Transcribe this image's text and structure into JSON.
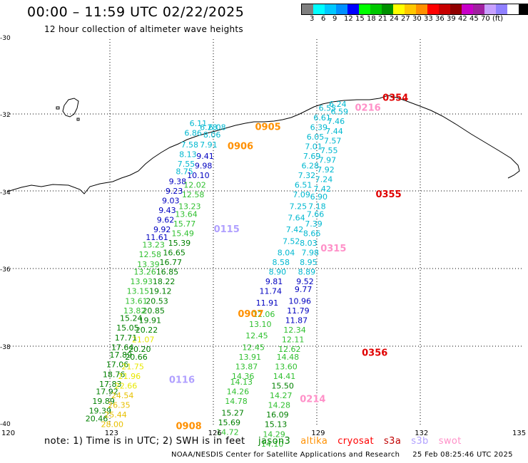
{
  "header": {
    "title": "00:00 – 11:59 UTC 02/22/2025",
    "subtitle": "12 hour collection of altimeter wave heights"
  },
  "colorbar": {
    "colors": [
      "#7f7f7f",
      "#00ffff",
      "#00c8ff",
      "#0090ff",
      "#0000ff",
      "#00ff00",
      "#00c800",
      "#009000",
      "#ffff00",
      "#ffc800",
      "#ff9000",
      "#ff0000",
      "#c80000",
      "#900000",
      "#c800c8",
      "#a020a0",
      "#c8a0ff",
      "#9080ff",
      "#ffffff",
      "#000000"
    ],
    "labels": [
      "3",
      "6",
      "9",
      "12",
      "15",
      "18",
      "21",
      "24",
      "27",
      "30",
      "33",
      "36",
      "39",
      "42",
      "45",
      "70",
      "(ft)"
    ]
  },
  "axes": {
    "lat_labels": [
      "-30",
      "-32",
      "-34",
      "-36",
      "-38",
      "-40"
    ],
    "lon_labels": [
      "120",
      "123",
      "126",
      "129",
      "132",
      "135"
    ]
  },
  "note": {
    "text": "note: 1) Time is in UTC; 2) SWH is in feet",
    "satellites": [
      {
        "name": "jason3",
        "color": "#008000"
      },
      {
        "name": "altika",
        "color": "#ff9000"
      },
      {
        "name": "cryosat",
        "color": "#ff0000"
      },
      {
        "name": "s3a",
        "color": "#c00000"
      },
      {
        "name": "s3b",
        "color": "#b0a0ff"
      },
      {
        "name": "swot",
        "color": "#ff90c8"
      }
    ]
  },
  "credit": {
    "text": "NOAA/NESDIS Center for Satellite Applications and Research",
    "stamp": "25 Feb 08:25:46 UTC 2025"
  },
  "pass_labels": [
    {
      "text": "0354",
      "color": "#e00000",
      "lon": 130.9,
      "lat": -31.6
    },
    {
      "text": "0216",
      "color": "#ff90c8",
      "lon": 130.1,
      "lat": -31.85
    },
    {
      "text": "0905",
      "color": "#ff9000",
      "lon": 127.2,
      "lat": -32.35
    },
    {
      "text": "0906",
      "color": "#ff9000",
      "lon": 126.4,
      "lat": -32.85
    },
    {
      "text": "0355",
      "color": "#e00000",
      "lon": 130.7,
      "lat": -34.1
    },
    {
      "text": "0115",
      "color": "#b0a0ff",
      "lon": 126.0,
      "lat": -35.0
    },
    {
      "text": "0315",
      "color": "#ff90c8",
      "lon": 129.1,
      "lat": -35.5
    },
    {
      "text": "0907",
      "color": "#ff9000",
      "lon": 126.7,
      "lat": -37.2
    },
    {
      "text": "0356",
      "color": "#e00000",
      "lon": 130.3,
      "lat": -38.2
    },
    {
      "text": "0116",
      "color": "#b0a0ff",
      "lon": 124.7,
      "lat": -38.9
    },
    {
      "text": "0214",
      "color": "#ff90c8",
      "lon": 128.5,
      "lat": -39.4
    },
    {
      "text": "0908",
      "color": "#ff9000",
      "lon": 124.9,
      "lat": -40.1
    }
  ],
  "swh_values": [
    {
      "v": "6.11",
      "c": "#00b8d0",
      "lon": 125.55,
      "lat": -32.25
    },
    {
      "v": "6.08",
      "c": "#00b8d0",
      "lon": 126.1,
      "lat": -32.35
    },
    {
      "v": "6.28",
      "c": "#00b8d0",
      "lon": 125.85,
      "lat": -32.35
    },
    {
      "v": "6.86",
      "c": "#00b8d0",
      "lon": 125.4,
      "lat": -32.5
    },
    {
      "v": "8.06",
      "c": "#00b8d0",
      "lon": 125.95,
      "lat": -32.55
    },
    {
      "v": "7.58",
      "c": "#00b8d0",
      "lon": 125.3,
      "lat": -32.8
    },
    {
      "v": "7.91",
      "c": "#00b8d0",
      "lon": 125.85,
      "lat": -32.8
    },
    {
      "v": "8.13",
      "c": "#00b8d0",
      "lon": 125.25,
      "lat": -33.05
    },
    {
      "v": "9.41",
      "c": "#0000c0",
      "lon": 125.75,
      "lat": -33.1
    },
    {
      "v": "7.55",
      "c": "#00b8d0",
      "lon": 125.2,
      "lat": -33.3
    },
    {
      "v": "9.98",
      "c": "#0000c0",
      "lon": 125.7,
      "lat": -33.35
    },
    {
      "v": "8.75",
      "c": "#00b8d0",
      "lon": 125.15,
      "lat": -33.5
    },
    {
      "v": "10.10",
      "c": "#0000c0",
      "lon": 125.55,
      "lat": -33.6
    },
    {
      "v": "9.38",
      "c": "#0000c0",
      "lon": 124.95,
      "lat": -33.75
    },
    {
      "v": "12.02",
      "c": "#30c030",
      "lon": 125.45,
      "lat": -33.85
    },
    {
      "v": "9.23",
      "c": "#0000c0",
      "lon": 124.85,
      "lat": -34.0
    },
    {
      "v": "12.58",
      "c": "#30c030",
      "lon": 125.4,
      "lat": -34.1
    },
    {
      "v": "9.03",
      "c": "#0000c0",
      "lon": 124.75,
      "lat": -34.25
    },
    {
      "v": "13.23",
      "c": "#30c030",
      "lon": 125.3,
      "lat": -34.4
    },
    {
      "v": "9.43",
      "c": "#0000c0",
      "lon": 124.65,
      "lat": -34.5
    },
    {
      "v": "13.64",
      "c": "#30c030",
      "lon": 125.2,
      "lat": -34.6
    },
    {
      "v": "9.62",
      "c": "#0000c0",
      "lon": 124.6,
      "lat": -34.75
    },
    {
      "v": "15.77",
      "c": "#30c030",
      "lon": 125.15,
      "lat": -34.85
    },
    {
      "v": "9.92",
      "c": "#0000c0",
      "lon": 124.5,
      "lat": -35.0
    },
    {
      "v": "15.49",
      "c": "#30c030",
      "lon": 125.1,
      "lat": -35.1
    },
    {
      "v": "11.61",
      "c": "#0000c0",
      "lon": 124.35,
      "lat": -35.2
    },
    {
      "v": "15.39",
      "c": "#008000",
      "lon": 125.0,
      "lat": -35.35
    },
    {
      "v": "13.23",
      "c": "#30c030",
      "lon": 124.25,
      "lat": -35.4
    },
    {
      "v": "16.65",
      "c": "#008000",
      "lon": 124.85,
      "lat": -35.6
    },
    {
      "v": "12.58",
      "c": "#30c030",
      "lon": 124.15,
      "lat": -35.65
    },
    {
      "v": "16.77",
      "c": "#008000",
      "lon": 124.75,
      "lat": -35.85
    },
    {
      "v": "13.39",
      "c": "#30c030",
      "lon": 124.1,
      "lat": -35.9
    },
    {
      "v": "16.85",
      "c": "#008000",
      "lon": 124.65,
      "lat": -36.1
    },
    {
      "v": "13.26",
      "c": "#30c030",
      "lon": 124.0,
      "lat": -36.1
    },
    {
      "v": "18.22",
      "c": "#008000",
      "lon": 124.55,
      "lat": -36.35
    },
    {
      "v": "13.93",
      "c": "#30c030",
      "lon": 123.9,
      "lat": -36.35
    },
    {
      "v": "19.12",
      "c": "#008000",
      "lon": 124.45,
      "lat": -36.6
    },
    {
      "v": "13.15",
      "c": "#30c030",
      "lon": 123.8,
      "lat": -36.6
    },
    {
      "v": "20.53",
      "c": "#008000",
      "lon": 124.35,
      "lat": -36.85
    },
    {
      "v": "13.61",
      "c": "#30c030",
      "lon": 123.75,
      "lat": -36.85
    },
    {
      "v": "20.85",
      "c": "#008000",
      "lon": 124.25,
      "lat": -37.1
    },
    {
      "v": "13.82",
      "c": "#30c030",
      "lon": 123.7,
      "lat": -37.1
    },
    {
      "v": "19.91",
      "c": "#008000",
      "lon": 124.15,
      "lat": -37.35
    },
    {
      "v": "15.24",
      "c": "#008000",
      "lon": 123.6,
      "lat": -37.3
    },
    {
      "v": "20.22",
      "c": "#008000",
      "lon": 124.05,
      "lat": -37.6
    },
    {
      "v": "15.05",
      "c": "#008000",
      "lon": 123.5,
      "lat": -37.55
    },
    {
      "v": "21.07",
      "c": "#e8e800",
      "lon": 123.95,
      "lat": -37.85
    },
    {
      "v": "17.71",
      "c": "#008000",
      "lon": 123.45,
      "lat": -37.8
    },
    {
      "v": "20.20",
      "c": "#008000",
      "lon": 123.85,
      "lat": -38.1
    },
    {
      "v": "17.64",
      "c": "#008000",
      "lon": 123.35,
      "lat": -38.05
    },
    {
      "v": "20.66",
      "c": "#008000",
      "lon": 123.75,
      "lat": -38.3
    },
    {
      "v": "17.89",
      "c": "#008000",
      "lon": 123.3,
      "lat": -38.25
    },
    {
      "v": "17.06",
      "c": "#008000",
      "lon": 123.2,
      "lat": -38.5
    },
    {
      "v": "21.75",
      "c": "#e8e800",
      "lon": 123.65,
      "lat": -38.55
    },
    {
      "v": "18.76",
      "c": "#008000",
      "lon": 123.1,
      "lat": -38.75
    },
    {
      "v": "21.96",
      "c": "#e8e800",
      "lon": 123.55,
      "lat": -38.8
    },
    {
      "v": "17.83",
      "c": "#008000",
      "lon": 123.0,
      "lat": -39.0
    },
    {
      "v": "22.66",
      "c": "#e8e800",
      "lon": 123.45,
      "lat": -39.05
    },
    {
      "v": "17.92",
      "c": "#008000",
      "lon": 122.9,
      "lat": -39.2
    },
    {
      "v": "24.54",
      "c": "#e8c000",
      "lon": 123.35,
      "lat": -39.3
    },
    {
      "v": "19.89",
      "c": "#008000",
      "lon": 122.8,
      "lat": -39.45
    },
    {
      "v": "26.35",
      "c": "#e8c000",
      "lon": 123.25,
      "lat": -39.55
    },
    {
      "v": "19.39",
      "c": "#008000",
      "lon": 122.7,
      "lat": -39.7
    },
    {
      "v": "25.44",
      "c": "#e8c000",
      "lon": 123.15,
      "lat": -39.8
    },
    {
      "v": "20.46",
      "c": "#008000",
      "lon": 122.6,
      "lat": -39.9
    },
    {
      "v": "28.00",
      "c": "#e8c000",
      "lon": 123.05,
      "lat": -40.05
    },
    {
      "v": "6.24",
      "c": "#00b8d0",
      "lon": 129.6,
      "lat": -31.75
    },
    {
      "v": "6.55",
      "c": "#00b8d0",
      "lon": 129.3,
      "lat": -31.85
    },
    {
      "v": "6.59",
      "c": "#00b8d0",
      "lon": 129.65,
      "lat": -31.95
    },
    {
      "v": "6.61",
      "c": "#00b8d0",
      "lon": 129.15,
      "lat": -32.1
    },
    {
      "v": "7.46",
      "c": "#00b8d0",
      "lon": 129.55,
      "lat": -32.2
    },
    {
      "v": "6.39",
      "c": "#00b8d0",
      "lon": 129.05,
      "lat": -32.35
    },
    {
      "v": "7.44",
      "c": "#00b8d0",
      "lon": 129.5,
      "lat": -32.45
    },
    {
      "v": "6.05",
      "c": "#00b8d0",
      "lon": 128.95,
      "lat": -32.6
    },
    {
      "v": "7.57",
      "c": "#00b8d0",
      "lon": 129.45,
      "lat": -32.7
    },
    {
      "v": "7.01",
      "c": "#00b8d0",
      "lon": 128.9,
      "lat": -32.85
    },
    {
      "v": "7.55",
      "c": "#00b8d0",
      "lon": 129.35,
      "lat": -32.95
    },
    {
      "v": "7.69",
      "c": "#00b8d0",
      "lon": 128.85,
      "lat": -33.1
    },
    {
      "v": "7.97",
      "c": "#00b8d0",
      "lon": 129.3,
      "lat": -33.2
    },
    {
      "v": "6.28",
      "c": "#00b8d0",
      "lon": 128.8,
      "lat": -33.35
    },
    {
      "v": "7.92",
      "c": "#00b8d0",
      "lon": 129.25,
      "lat": -33.45
    },
    {
      "v": "7.32",
      "c": "#00b8d0",
      "lon": 128.7,
      "lat": -33.6
    },
    {
      "v": "7.24",
      "c": "#00b8d0",
      "lon": 129.2,
      "lat": -33.7
    },
    {
      "v": "6.51",
      "c": "#00b8d0",
      "lon": 128.6,
      "lat": -33.85
    },
    {
      "v": "7.42",
      "c": "#00b8d0",
      "lon": 129.15,
      "lat": -33.95
    },
    {
      "v": "7.09",
      "c": "#00b8d0",
      "lon": 128.55,
      "lat": -34.1
    },
    {
      "v": "6.90",
      "c": "#00b8d0",
      "lon": 129.05,
      "lat": -34.15
    },
    {
      "v": "7.18",
      "c": "#00b8d0",
      "lon": 129.0,
      "lat": -34.4
    },
    {
      "v": "7.25",
      "c": "#00b8d0",
      "lon": 128.45,
      "lat": -34.4
    },
    {
      "v": "7.66",
      "c": "#00b8d0",
      "lon": 128.95,
      "lat": -34.6
    },
    {
      "v": "7.64",
      "c": "#00b8d0",
      "lon": 128.4,
      "lat": -34.7
    },
    {
      "v": "7.39",
      "c": "#00b8d0",
      "lon": 128.9,
      "lat": -34.85
    },
    {
      "v": "7.42",
      "c": "#00b8d0",
      "lon": 128.35,
      "lat": -35.0
    },
    {
      "v": "8.66",
      "c": "#00b8d0",
      "lon": 128.85,
      "lat": -35.1
    },
    {
      "v": "7.52",
      "c": "#00b8d0",
      "lon": 128.25,
      "lat": -35.3
    },
    {
      "v": "8.03",
      "c": "#00b8d0",
      "lon": 128.75,
      "lat": -35.35
    },
    {
      "v": "7.98",
      "c": "#00b8d0",
      "lon": 128.8,
      "lat": -35.6
    },
    {
      "v": "8.04",
      "c": "#00b8d0",
      "lon": 128.1,
      "lat": -35.6
    },
    {
      "v": "8.95",
      "c": "#00b8d0",
      "lon": 128.75,
      "lat": -35.85
    },
    {
      "v": "8.58",
      "c": "#00b8d0",
      "lon": 127.95,
      "lat": -35.85
    },
    {
      "v": "8.89",
      "c": "#00b8d0",
      "lon": 128.7,
      "lat": -36.1
    },
    {
      "v": "8.90",
      "c": "#00b8d0",
      "lon": 127.85,
      "lat": -36.1
    },
    {
      "v": "9.52",
      "c": "#0000c0",
      "lon": 128.65,
      "lat": -36.35
    },
    {
      "v": "9.81",
      "c": "#0000c0",
      "lon": 127.75,
      "lat": -36.35
    },
    {
      "v": "9.77",
      "c": "#0000c0",
      "lon": 128.6,
      "lat": -36.55
    },
    {
      "v": "11.74",
      "c": "#0000c0",
      "lon": 127.65,
      "lat": -36.6
    },
    {
      "v": "10.96",
      "c": "#0000c0",
      "lon": 128.5,
      "lat": -36.85
    },
    {
      "v": "11.91",
      "c": "#0000c0",
      "lon": 127.55,
      "lat": -36.9
    },
    {
      "v": "11.79",
      "c": "#0000c0",
      "lon": 128.45,
      "lat": -37.1
    },
    {
      "v": "12.06",
      "c": "#30c030",
      "lon": 127.45,
      "lat": -37.2
    },
    {
      "v": "11.87",
      "c": "#0000c0",
      "lon": 128.4,
      "lat": -37.35
    },
    {
      "v": "13.10",
      "c": "#30c030",
      "lon": 127.35,
      "lat": -37.45
    },
    {
      "v": "12.34",
      "c": "#30c030",
      "lon": 128.35,
      "lat": -37.6
    },
    {
      "v": "12.45",
      "c": "#30c030",
      "lon": 127.25,
      "lat": -37.75
    },
    {
      "v": "12.11",
      "c": "#30c030",
      "lon": 128.3,
      "lat": -37.85
    },
    {
      "v": "12.45",
      "c": "#30c030",
      "lon": 127.15,
      "lat": -38.05
    },
    {
      "v": "12.62",
      "c": "#30c030",
      "lon": 128.2,
      "lat": -38.1
    },
    {
      "v": "13.91",
      "c": "#30c030",
      "lon": 127.05,
      "lat": -38.3
    },
    {
      "v": "14.48",
      "c": "#30c030",
      "lon": 128.15,
      "lat": -38.3
    },
    {
      "v": "13.87",
      "c": "#30c030",
      "lon": 126.95,
      "lat": -38.55
    },
    {
      "v": "13.60",
      "c": "#30c030",
      "lon": 128.1,
      "lat": -38.55
    },
    {
      "v": "14.36",
      "c": "#30c030",
      "lon": 126.85,
      "lat": -38.8
    },
    {
      "v": "14.13",
      "c": "#30c030",
      "lon": 126.8,
      "lat": -38.95
    },
    {
      "v": "14.41",
      "c": "#30c030",
      "lon": 128.05,
      "lat": -38.8
    },
    {
      "v": "15.50",
      "c": "#008000",
      "lon": 128.0,
      "lat": -39.05
    },
    {
      "v": "14.26",
      "c": "#30c030",
      "lon": 126.7,
      "lat": -39.2
    },
    {
      "v": "14.27",
      "c": "#30c030",
      "lon": 127.95,
      "lat": -39.3
    },
    {
      "v": "14.78",
      "c": "#30c030",
      "lon": 126.65,
      "lat": -39.45
    },
    {
      "v": "14.28",
      "c": "#30c030",
      "lon": 127.9,
      "lat": -39.55
    },
    {
      "v": "15.27",
      "c": "#008000",
      "lon": 126.55,
      "lat": -39.75
    },
    {
      "v": "16.09",
      "c": "#008000",
      "lon": 127.85,
      "lat": -39.8
    },
    {
      "v": "15.69",
      "c": "#008000",
      "lon": 126.45,
      "lat": -40.0
    },
    {
      "v": "15.13",
      "c": "#008000",
      "lon": 127.8,
      "lat": -40.05
    },
    {
      "v": "14.72",
      "c": "#30c030",
      "lon": 126.4,
      "lat": -40.25
    },
    {
      "v": "14.29",
      "c": "#30c030",
      "lon": 127.75,
      "lat": -40.3
    },
    {
      "v": "14.10",
      "c": "#30c030",
      "lon": 127.7,
      "lat": -40.55
    }
  ]
}
